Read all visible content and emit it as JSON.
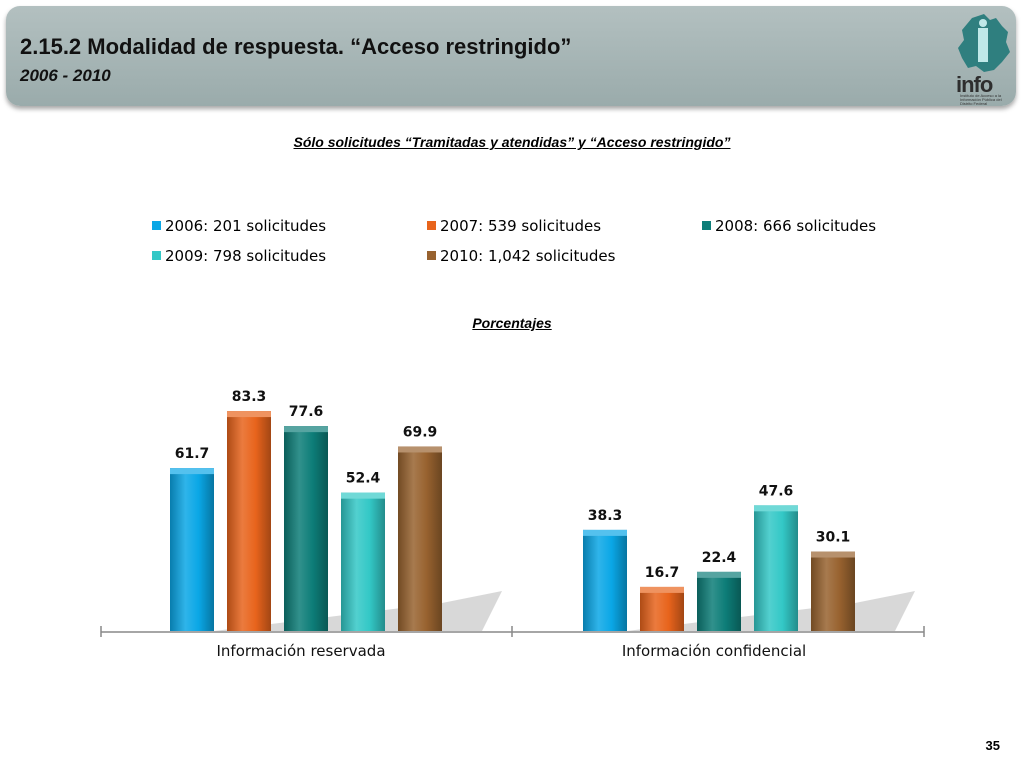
{
  "header": {
    "title": "2.15.2 Modalidad de respuesta. “Acceso restringido”",
    "subtitle": "2006 - 2010",
    "logo_text": "info",
    "logo_small_text": "Instituto de Acceso a la Información Pública del Distrito Federal"
  },
  "subtitle": "Sólo solicitudes “Tramitadas y atendidas” y “Acceso restringido”",
  "percent_label": "Porcentajes",
  "page_number": "35",
  "legend": [
    {
      "label": "2006: 201 solicitudes",
      "color": "#0aa7e6"
    },
    {
      "label": "2007: 539 solicitudes",
      "color": "#e8641c"
    },
    {
      "label": "2008: 666 solicitudes",
      "color": "#0d7d78"
    },
    {
      "label": "2009: 798 solicitudes",
      "color": "#33c8c6"
    },
    {
      "label": "2010: 1,042 solicitudes",
      "color": "#98622f"
    }
  ],
  "chart_data": {
    "type": "bar",
    "categories": [
      "Información reservada",
      "Información confidencial"
    ],
    "series": [
      {
        "name": "2006: 201 solicitudes",
        "values": [
          61.7,
          38.3
        ],
        "color": "#0aa7e6"
      },
      {
        "name": "2007: 539 solicitudes",
        "values": [
          83.3,
          16.7
        ],
        "color": "#e8641c"
      },
      {
        "name": "2008: 666 solicitudes",
        "values": [
          77.6,
          22.4
        ],
        "color": "#0d7d78"
      },
      {
        "name": "2009: 798 solicitudes",
        "values": [
          52.4,
          47.6
        ],
        "color": "#33c8c6"
      },
      {
        "name": "2010: 1,042 solicitudes",
        "values": [
          69.9,
          30.1
        ],
        "color": "#98622f"
      }
    ],
    "value_labels": [
      [
        "61.7",
        "38.3"
      ],
      [
        "83.3",
        "16.7"
      ],
      [
        "77.6",
        "22.4"
      ],
      [
        "52.4",
        "47.6"
      ],
      [
        "69.9",
        "30.1"
      ]
    ],
    "title": "",
    "ylabel": "",
    "ylim": [
      0,
      100
    ],
    "grid": false,
    "legend_position": "top"
  }
}
